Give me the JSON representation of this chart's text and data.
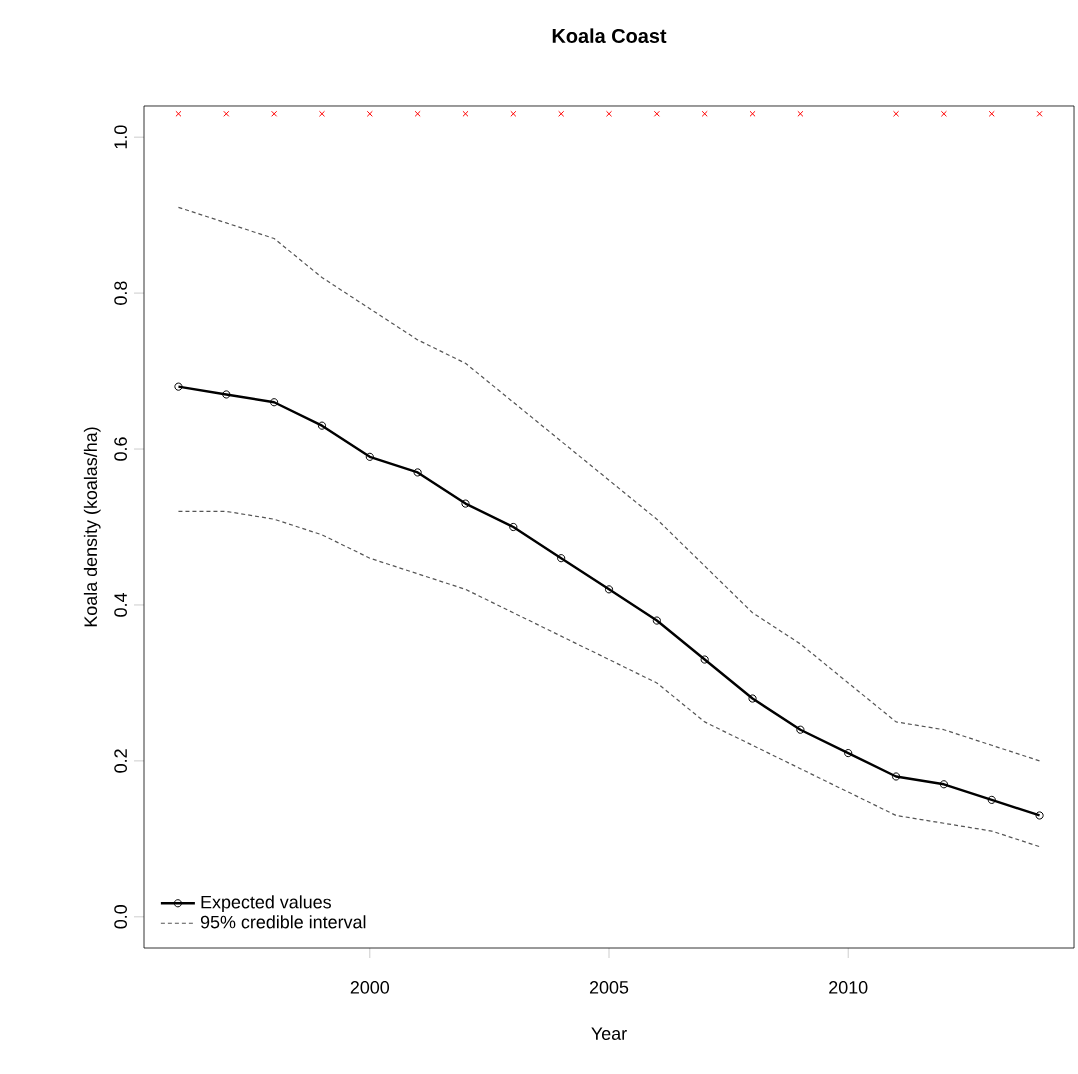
{
  "chart_data": {
    "type": "line",
    "title": "Koala Coast",
    "xlabel": "Year",
    "ylabel": "Koala density (koalas/ha)",
    "x": [
      1996,
      1997,
      1998,
      1999,
      2000,
      2001,
      2002,
      2003,
      2004,
      2005,
      2006,
      2007,
      2008,
      2009,
      2010,
      2011,
      2012,
      2013,
      2014
    ],
    "series": [
      {
        "name": "Expected values",
        "color": "#000000",
        "marker": "circle",
        "line_style": "solid",
        "values": [
          0.68,
          0.67,
          0.66,
          0.63,
          0.59,
          0.57,
          0.53,
          0.5,
          0.46,
          0.42,
          0.38,
          0.33,
          0.28,
          0.24,
          0.21,
          0.18,
          0.17,
          0.15,
          0.13
        ]
      },
      {
        "name": "95% credible interval",
        "color": "#555555",
        "marker": "none",
        "line_style": "dashed",
        "values": [
          0.91,
          0.89,
          0.87,
          0.82,
          0.78,
          0.74,
          0.71,
          0.66,
          0.61,
          0.56,
          0.51,
          0.45,
          0.39,
          0.35,
          0.3,
          0.25,
          0.24,
          0.22,
          0.2
        ]
      },
      {
        "color": "#555555",
        "marker": "none",
        "line_style": "dashed",
        "values": [
          0.52,
          0.52,
          0.51,
          0.49,
          0.46,
          0.44,
          0.42,
          0.39,
          0.36,
          0.33,
          0.3,
          0.25,
          0.22,
          0.19,
          0.16,
          0.13,
          0.12,
          0.11,
          0.09
        ]
      },
      {
        "type": "scatter",
        "color": "#ff0000",
        "marker": "cross",
        "x": [
          1996,
          1997,
          1998,
          1999,
          2000,
          2001,
          2002,
          2003,
          2004,
          2005,
          2006,
          2007,
          2008,
          2009,
          2011,
          2012,
          2013,
          2014
        ],
        "values": [
          1.03,
          1.03,
          1.03,
          1.03,
          1.03,
          1.03,
          1.03,
          1.03,
          1.03,
          1.03,
          1.03,
          1.03,
          1.03,
          1.03,
          1.03,
          1.03,
          1.03,
          1.03
        ]
      }
    ],
    "xlim": [
      1995.28,
      2014.72
    ],
    "ylim": [
      -0.04,
      1.04
    ],
    "xticks": [
      2000,
      2005,
      2010
    ],
    "yticks": [
      {
        "value": 0,
        "label": "0.0"
      },
      {
        "value": 0.2,
        "label": "0.2"
      },
      {
        "value": 0.4,
        "label": "0.4"
      },
      {
        "value": 0.6,
        "label": "0.6"
      },
      {
        "value": 0.8,
        "label": "0.8"
      },
      {
        "value": 1,
        "label": "1.0"
      }
    ],
    "tick_labels": "xy",
    "grid": false,
    "legend": "bottom left"
  }
}
